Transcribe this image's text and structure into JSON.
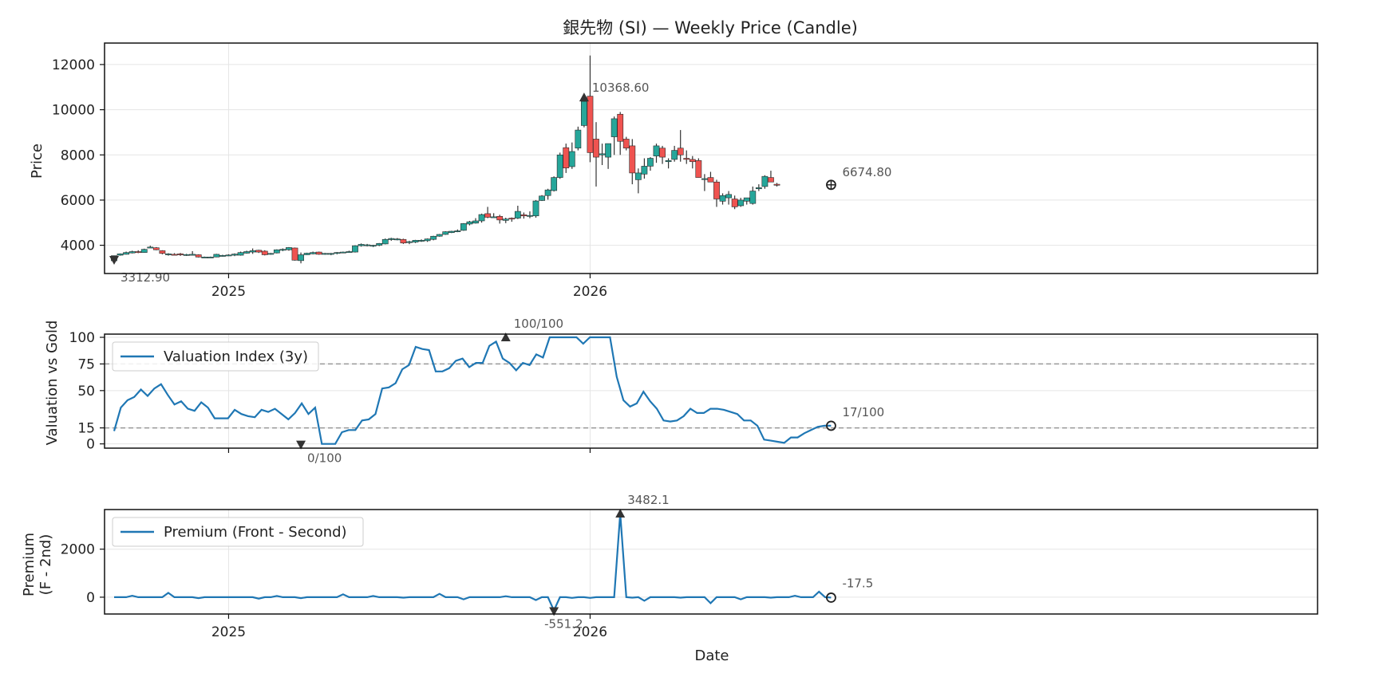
{
  "chart_data": [
    {
      "type": "candlestick",
      "title": "銀先物 (SI) — Weekly Price (Candle)",
      "ylabel": "Price",
      "ylim": [
        2750,
        12950
      ],
      "yticks": [
        4000,
        6000,
        8000,
        10000,
        12000
      ],
      "xticks": [
        {
          "label": "2025",
          "index": 19
        },
        {
          "label": "2026",
          "index": 79
        }
      ],
      "colors": {
        "up": "#26a69a",
        "down": "#ef5350",
        "wick": "#333333",
        "grid": "#e5e5e5"
      },
      "candles": [
        [
          3312.9,
          3540,
          3312.9,
          3540
        ],
        [
          3560,
          3640,
          3540,
          3620
        ],
        [
          3600,
          3720,
          3590,
          3680
        ],
        [
          3660,
          3760,
          3640,
          3720
        ],
        [
          3720,
          3780,
          3650,
          3690
        ],
        [
          3680,
          3850,
          3670,
          3820
        ],
        [
          3900,
          3980,
          3880,
          3920
        ],
        [
          3890,
          3920,
          3780,
          3800
        ],
        [
          3760,
          3780,
          3600,
          3640
        ],
        [
          3580,
          3650,
          3540,
          3620
        ],
        [
          3600,
          3650,
          3560,
          3590
        ],
        [
          3620,
          3660,
          3530,
          3580
        ],
        [
          3560,
          3620,
          3530,
          3590
        ],
        [
          3590,
          3740,
          3550,
          3600
        ],
        [
          3580,
          3600,
          3460,
          3480
        ],
        [
          3470,
          3500,
          3450,
          3480
        ],
        [
          3470,
          3500,
          3450,
          3480
        ],
        [
          3480,
          3620,
          3470,
          3600
        ],
        [
          3530,
          3580,
          3500,
          3550
        ],
        [
          3550,
          3600,
          3520,
          3570
        ],
        [
          3560,
          3640,
          3520,
          3610
        ],
        [
          3560,
          3720,
          3540,
          3680
        ],
        [
          3650,
          3760,
          3630,
          3720
        ],
        [
          3700,
          3860,
          3620,
          3760
        ],
        [
          3780,
          3800,
          3660,
          3700
        ],
        [
          3740,
          3780,
          3550,
          3580
        ],
        [
          3600,
          3660,
          3580,
          3640
        ],
        [
          3660,
          3820,
          3640,
          3800
        ],
        [
          3780,
          3860,
          3740,
          3820
        ],
        [
          3800,
          3920,
          3760,
          3900
        ],
        [
          3880,
          3900,
          3320,
          3340
        ],
        [
          3320,
          3680,
          3200,
          3580
        ],
        [
          3580,
          3670,
          3570,
          3650
        ],
        [
          3620,
          3720,
          3600,
          3680
        ],
        [
          3700,
          3720,
          3580,
          3600
        ],
        [
          3620,
          3660,
          3580,
          3640
        ],
        [
          3620,
          3660,
          3560,
          3640
        ],
        [
          3640,
          3700,
          3600,
          3680
        ],
        [
          3680,
          3720,
          3660,
          3700
        ],
        [
          3700,
          3760,
          3680,
          3720
        ],
        [
          3700,
          4000,
          3680,
          3980
        ],
        [
          3980,
          4080,
          3940,
          4040
        ],
        [
          4000,
          4060,
          3950,
          4020
        ],
        [
          3970,
          4020,
          3920,
          4000
        ],
        [
          4000,
          4100,
          3960,
          4080
        ],
        [
          4060,
          4300,
          4040,
          4260
        ],
        [
          4250,
          4330,
          4200,
          4300
        ],
        [
          4280,
          4320,
          4220,
          4280
        ],
        [
          4260,
          4290,
          4060,
          4100
        ],
        [
          4120,
          4200,
          4050,
          4160
        ],
        [
          4140,
          4240,
          4100,
          4220
        ],
        [
          4180,
          4260,
          4150,
          4220
        ],
        [
          4200,
          4300,
          4150,
          4280
        ],
        [
          4260,
          4420,
          4220,
          4400
        ],
        [
          4400,
          4500,
          4380,
          4480
        ],
        [
          4480,
          4620,
          4460,
          4600
        ],
        [
          4560,
          4640,
          4540,
          4620
        ],
        [
          4620,
          4700,
          4580,
          4640
        ],
        [
          4660,
          4980,
          4640,
          4960
        ],
        [
          4940,
          5080,
          4880,
          5040
        ],
        [
          4980,
          5200,
          4960,
          5080
        ],
        [
          5080,
          5400,
          5000,
          5360
        ],
        [
          5400,
          5700,
          5200,
          5240
        ],
        [
          5250,
          5420,
          5240,
          5260
        ],
        [
          5280,
          5350,
          4960,
          5120
        ],
        [
          5100,
          5220,
          4980,
          5160
        ],
        [
          5200,
          5230,
          5040,
          5180
        ],
        [
          5200,
          5750,
          5160,
          5500
        ],
        [
          5350,
          5450,
          5180,
          5300
        ],
        [
          5280,
          5500,
          5200,
          5320
        ],
        [
          5300,
          6000,
          5220,
          5960
        ],
        [
          5980,
          6220,
          5960,
          6180
        ],
        [
          6200,
          6500,
          6020,
          6450
        ],
        [
          6420,
          7050,
          6380,
          7000
        ],
        [
          7000,
          8100,
          6940,
          8000
        ],
        [
          8320,
          8500,
          7200,
          7420
        ],
        [
          7480,
          8550,
          7380,
          8150
        ],
        [
          8300,
          9250,
          8200,
          9100
        ],
        [
          9300,
          10400,
          9220,
          10368.6
        ],
        [
          10600,
          12400,
          7680,
          8100
        ],
        [
          8700,
          9450,
          6600,
          7900
        ],
        [
          8000,
          8500,
          7550,
          8050
        ],
        [
          7900,
          8500,
          7380,
          8500
        ],
        [
          8800,
          9700,
          8000,
          9600
        ],
        [
          9800,
          9900,
          8000,
          8600
        ],
        [
          8700,
          8800,
          8200,
          8300
        ],
        [
          8400,
          8700,
          6700,
          7200
        ],
        [
          6900,
          7400,
          6300,
          7200
        ],
        [
          7150,
          7850,
          6950,
          7500
        ],
        [
          7500,
          7900,
          7300,
          7850
        ],
        [
          7950,
          8500,
          7650,
          8400
        ],
        [
          8300,
          8400,
          7600,
          7900
        ],
        [
          7700,
          7850,
          7400,
          7750
        ],
        [
          7800,
          8400,
          7700,
          8200
        ],
        [
          8300,
          9100,
          7700,
          8000
        ],
        [
          7850,
          8200,
          7600,
          7800
        ],
        [
          7800,
          7950,
          7400,
          7700
        ],
        [
          7750,
          7850,
          7000,
          7000
        ],
        [
          6950,
          7150,
          6400,
          6950
        ],
        [
          7000,
          7250,
          6900,
          6800
        ],
        [
          6800,
          6900,
          5700,
          6050
        ],
        [
          5950,
          6300,
          5800,
          6200
        ],
        [
          6100,
          6400,
          5800,
          6250
        ],
        [
          6050,
          6200,
          5600,
          5700
        ],
        [
          5750,
          6100,
          5700,
          6000
        ],
        [
          5950,
          6100,
          5800,
          6100
        ],
        [
          5850,
          6600,
          5800,
          6400
        ],
        [
          6500,
          6700,
          6400,
          6550
        ],
        [
          6600,
          7100,
          6500,
          7050
        ],
        [
          7000,
          7300,
          6850,
          6800
        ],
        [
          6700,
          6760,
          6600,
          6674.8
        ]
      ],
      "annotations": [
        {
          "text": "10368.60",
          "index": 78,
          "value": 10368.6,
          "marker": "up-triangle"
        },
        {
          "text": "3312.90",
          "index": 0,
          "value": 3312.9,
          "marker": "down-triangle"
        },
        {
          "text": "6674.80",
          "index": 119,
          "value": 6674.8,
          "marker": "circle-plus"
        }
      ]
    },
    {
      "type": "line",
      "ylabel": "Valuation vs Gold",
      "ylim": [
        -4,
        103
      ],
      "yticks": [
        0,
        15,
        50,
        75,
        100
      ],
      "hlines": [
        15,
        75
      ],
      "xticks": [
        {
          "label": "",
          "index": 19
        },
        {
          "label": "",
          "index": 79
        }
      ],
      "legend": {
        "placement": "top-left"
      },
      "series": [
        {
          "name": "Valuation Index (3y)",
          "color": "#1f77b4",
          "values": [
            12,
            34,
            41,
            44,
            51,
            45,
            52,
            56,
            46,
            37,
            40,
            33,
            31,
            39,
            34,
            24,
            24,
            24,
            32,
            28,
            26,
            25,
            32,
            30,
            33,
            28,
            23,
            29,
            38,
            28,
            34,
            0,
            0,
            0,
            11,
            13,
            13,
            22,
            23,
            28,
            52,
            53,
            57,
            70,
            74,
            91,
            89,
            88,
            68,
            68,
            71,
            78,
            80,
            72,
            76,
            76,
            92,
            96,
            80,
            76,
            69,
            76,
            74,
            84,
            81,
            100,
            100,
            100,
            100,
            100,
            94,
            100,
            100,
            100,
            100,
            63,
            41,
            35,
            38,
            49,
            40,
            33,
            22,
            21,
            22,
            26,
            33,
            29,
            29,
            33,
            33,
            32,
            30,
            28,
            22,
            22,
            17,
            4,
            3,
            2,
            1,
            6,
            6,
            10,
            13,
            16,
            17,
            17
          ]
        }
      ],
      "annotations": [
        {
          "text": "100/100",
          "index": 65,
          "value": 100,
          "marker": "up-triangle"
        },
        {
          "text": "0/100",
          "index": 31,
          "value": 0,
          "marker": "down-triangle"
        },
        {
          "text": "17/100",
          "index": 119,
          "value": 17,
          "marker": "circle"
        }
      ]
    },
    {
      "type": "line",
      "ylabel": "Premium\n(F - 2nd)",
      "xlabel": "Date",
      "ylim": [
        -700,
        3650
      ],
      "yticks": [
        0,
        2000
      ],
      "xticks": [
        {
          "label": "2025",
          "index": 19
        },
        {
          "label": "2026",
          "index": 79
        }
      ],
      "legend": {
        "placement": "top-left"
      },
      "series": [
        {
          "name": "Premium (Front - Second)",
          "color": "#1f77b4",
          "spikes": [
            [
              3,
              60
            ],
            [
              9,
              180
            ],
            [
              14,
              -40
            ],
            [
              24,
              -60
            ],
            [
              27,
              50
            ],
            [
              31,
              -40
            ],
            [
              38,
              120
            ],
            [
              43,
              50
            ],
            [
              48,
              -20
            ],
            [
              54,
              140
            ],
            [
              58,
              -90
            ],
            [
              65,
              40
            ],
            [
              70,
              -120
            ],
            [
              73,
              -551.2
            ],
            [
              76,
              -30
            ],
            [
              79,
              -30
            ],
            [
              84,
              3482.1
            ],
            [
              86,
              -20
            ],
            [
              88,
              -150
            ],
            [
              94,
              -20
            ],
            [
              99,
              -250
            ],
            [
              104,
              -90
            ],
            [
              109,
              -20
            ],
            [
              113,
              60
            ],
            [
              117,
              230
            ],
            [
              119,
              -17.5
            ]
          ]
        }
      ],
      "annotations": [
        {
          "text": "3482.1",
          "index": 84,
          "value": 3482.1,
          "marker": "up-triangle"
        },
        {
          "text": "-551.2",
          "index": 73,
          "value": -551.2,
          "marker": "down-triangle"
        },
        {
          "text": "-17.5",
          "index": 119,
          "value": -17.5,
          "marker": "circle"
        }
      ]
    }
  ]
}
